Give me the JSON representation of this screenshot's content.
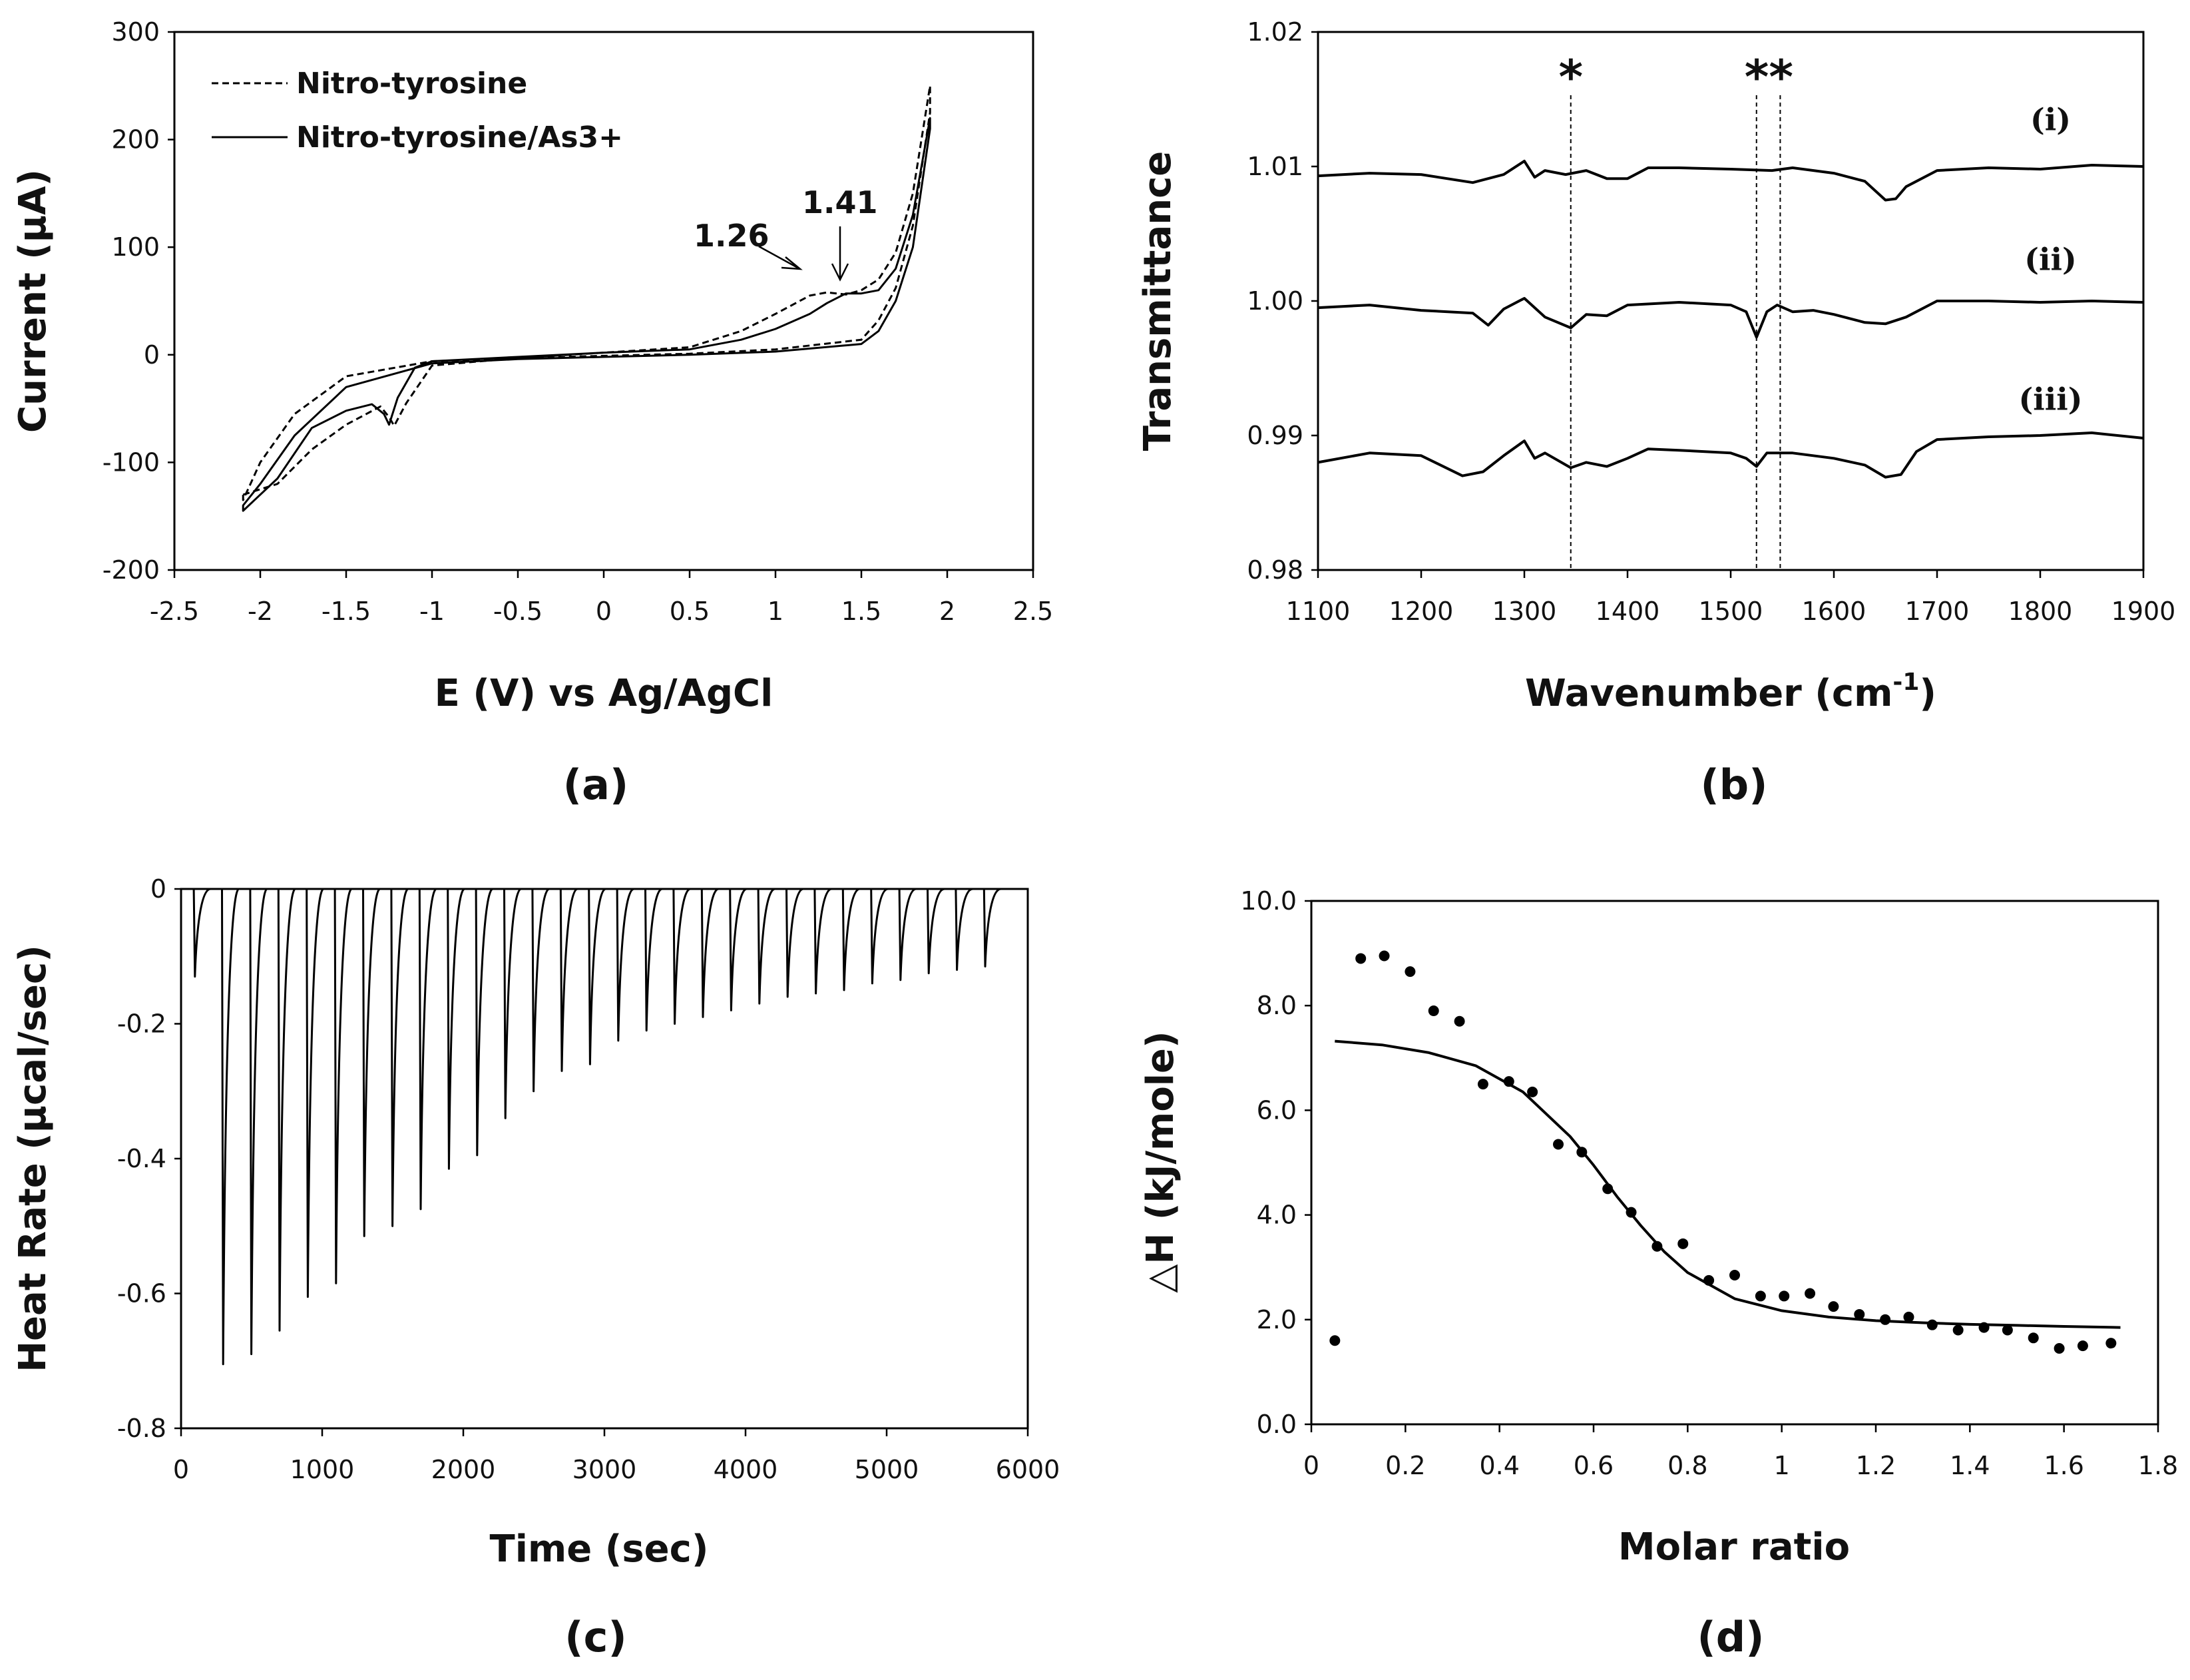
{
  "chart_data": [
    {
      "id": "a",
      "type": "line",
      "panel_label": "(a)",
      "xlabel": "E (V) vs Ag/AgCl",
      "ylabel": "Current (μA)",
      "xlim": [
        -2.5,
        2.5
      ],
      "ylim": [
        -200,
        300
      ],
      "xticks": [
        -2.5,
        -2,
        -1.5,
        -1,
        -0.5,
        0,
        0.5,
        1,
        1.5,
        2,
        2.5
      ],
      "xtick_labels": [
        "-2.5",
        "-2",
        "-1.5",
        "-1",
        "-0.5",
        "0",
        "0.5",
        "1",
        "1.5",
        "2",
        "2.5"
      ],
      "yticks": [
        -200,
        -100,
        0,
        100,
        200,
        300
      ],
      "ytick_labels": [
        "-200",
        "-100",
        "0",
        "100",
        "200",
        "300"
      ],
      "legend_position": "top-left",
      "series": [
        {
          "name": "Nitro-tyrosine",
          "style": "dashed",
          "x": [
            -2.1,
            -1.9,
            -1.7,
            -1.5,
            -1.3,
            -1.25,
            -1.22,
            -1.15,
            -1.0,
            -0.5,
            0.0,
            0.5,
            0.8,
            1.0,
            1.2,
            1.3,
            1.41,
            1.5,
            1.6,
            1.7,
            1.8,
            1.9,
            1.9,
            1.8,
            1.7,
            1.6,
            1.5,
            1.0,
            0.5,
            0.0,
            -0.5,
            -1.0,
            -1.5,
            -1.8,
            -2.0,
            -2.1
          ],
          "y": [
            -130,
            -120,
            -88,
            -65,
            -48,
            -58,
            -66,
            -45,
            -10,
            -3,
            2,
            7,
            22,
            38,
            55,
            58,
            56,
            60,
            70,
            95,
            150,
            250,
            225,
            120,
            62,
            32,
            14,
            5,
            1,
            -1,
            -3,
            -6,
            -20,
            -55,
            -100,
            -135
          ]
        },
        {
          "name": "Nitro-tyrosine/As3+",
          "style": "solid",
          "x": [
            -2.1,
            -1.9,
            -1.7,
            -1.5,
            -1.35,
            -1.28,
            -1.25,
            -1.2,
            -1.1,
            -1.0,
            -0.5,
            0.0,
            0.5,
            0.8,
            1.0,
            1.2,
            1.3,
            1.41,
            1.5,
            1.6,
            1.7,
            1.8,
            1.9,
            1.9,
            1.8,
            1.7,
            1.6,
            1.5,
            1.0,
            0.5,
            0.0,
            -0.5,
            -1.0,
            -1.5,
            -1.8,
            -2.0,
            -2.1
          ],
          "y": [
            -145,
            -115,
            -68,
            -52,
            -46,
            -55,
            -65,
            -40,
            -12,
            -6,
            -2,
            2,
            5,
            14,
            24,
            38,
            48,
            57,
            57,
            60,
            80,
            130,
            220,
            210,
            100,
            50,
            22,
            10,
            3,
            0,
            -2,
            -4,
            -8,
            -30,
            -75,
            -120,
            -140
          ]
        }
      ],
      "annotations": [
        {
          "text": "1.26",
          "x": 1.18,
          "y": 53
        },
        {
          "text": "1.41",
          "x": 1.41,
          "y": 56
        }
      ]
    },
    {
      "id": "b",
      "type": "line",
      "panel_label": "(b)",
      "xlabel": "Wavenumber (cm",
      "xlabel_sup": "-1",
      "xlabel_end": ")",
      "ylabel": "Transmittance",
      "xlim": [
        1100,
        1900
      ],
      "ylim": [
        0.98,
        1.02
      ],
      "xticks": [
        1100,
        1200,
        1300,
        1400,
        1500,
        1600,
        1700,
        1800,
        1900
      ],
      "xtick_labels": [
        "1100",
        "1200",
        "1300",
        "1400",
        "1500",
        "1600",
        "1700",
        "1800",
        "1900"
      ],
      "yticks": [
        0.98,
        0.99,
        1.0,
        1.01,
        1.02
      ],
      "ytick_labels": [
        "0.98",
        "0.99",
        "1.00",
        "1.01",
        "1.02"
      ],
      "series": [
        {
          "name": "(i)",
          "x": [
            1100,
            1150,
            1200,
            1250,
            1280,
            1300,
            1310,
            1320,
            1340,
            1360,
            1380,
            1400,
            1420,
            1450,
            1500,
            1540,
            1560,
            1600,
            1630,
            1650,
            1660,
            1670,
            1700,
            1750,
            1800,
            1850,
            1900
          ],
          "y": [
            1.0093,
            1.0095,
            1.0094,
            1.0088,
            1.0094,
            1.0104,
            1.0092,
            1.0097,
            1.0094,
            1.0097,
            1.0091,
            1.0091,
            1.0099,
            1.0099,
            1.0098,
            1.0097,
            1.0099,
            1.0095,
            1.0089,
            1.0075,
            1.0076,
            1.0085,
            1.0097,
            1.0099,
            1.0098,
            1.0101,
            1.01
          ]
        },
        {
          "name": "(ii)",
          "x": [
            1100,
            1150,
            1200,
            1250,
            1265,
            1280,
            1300,
            1320,
            1345,
            1360,
            1380,
            1400,
            1450,
            1500,
            1515,
            1525,
            1535,
            1545,
            1560,
            1580,
            1600,
            1630,
            1650,
            1670,
            1700,
            1750,
            1800,
            1850,
            1900
          ],
          "y": [
            0.9995,
            0.9997,
            0.9993,
            0.9991,
            0.9982,
            0.9994,
            1.0002,
            0.9988,
            0.998,
            0.999,
            0.9989,
            0.9997,
            0.9999,
            0.9997,
            0.9992,
            0.9973,
            0.9992,
            0.9997,
            0.9992,
            0.9993,
            0.999,
            0.9984,
            0.9983,
            0.9988,
            1.0,
            1.0,
            0.9999,
            1.0,
            0.9999
          ]
        },
        {
          "name": "(iii)",
          "x": [
            1100,
            1150,
            1200,
            1240,
            1260,
            1280,
            1300,
            1310,
            1320,
            1345,
            1360,
            1380,
            1400,
            1420,
            1450,
            1500,
            1515,
            1525,
            1535,
            1560,
            1600,
            1630,
            1650,
            1665,
            1680,
            1700,
            1750,
            1800,
            1850,
            1900
          ],
          "y": [
            0.988,
            0.9887,
            0.9885,
            0.987,
            0.9873,
            0.9885,
            0.9896,
            0.9883,
            0.9887,
            0.9876,
            0.988,
            0.9877,
            0.9883,
            0.989,
            0.9889,
            0.9887,
            0.9883,
            0.9877,
            0.9887,
            0.9887,
            0.9883,
            0.9878,
            0.9869,
            0.9871,
            0.9888,
            0.9897,
            0.9899,
            0.99,
            0.9902,
            0.9898
          ]
        }
      ],
      "series_labels": [
        {
          "text": "(i)",
          "x": 1810,
          "y": 1.0135
        },
        {
          "text": "(ii)",
          "x": 1810,
          "y": 1.0031
        },
        {
          "text": "(iii)",
          "x": 1810,
          "y": 0.9927
        }
      ],
      "reference_lines": [
        1345,
        1525,
        1548
      ],
      "markers": [
        {
          "text": "*",
          "x": 1345
        },
        {
          "text": "**",
          "x": 1537
        }
      ]
    },
    {
      "id": "c",
      "type": "line",
      "panel_label": "(c)",
      "xlabel": "Time (sec)",
      "ylabel": "Heat Rate (μcal/sec)",
      "xlim": [
        0,
        6000
      ],
      "ylim": [
        -0.8,
        0
      ],
      "xticks": [
        0,
        1000,
        2000,
        3000,
        4000,
        5000,
        6000
      ],
      "xtick_labels": [
        "0",
        "1000",
        "2000",
        "3000",
        "4000",
        "5000",
        "6000"
      ],
      "yticks": [
        -0.8,
        -0.6,
        -0.4,
        -0.2,
        0
      ],
      "ytick_labels": [
        "-0.8",
        "-0.6",
        "-0.4",
        "-0.2",
        "0"
      ],
      "baseline": 0,
      "injection_times": [
        90,
        290,
        490,
        690,
        890,
        1090,
        1290,
        1490,
        1690,
        1890,
        2090,
        2290,
        2490,
        2690,
        2890,
        3090,
        3290,
        3490,
        3690,
        3890,
        4090,
        4290,
        4490,
        4690,
        4890,
        5090,
        5290,
        5490,
        5690
      ],
      "peak_values": [
        -0.13,
        -0.705,
        -0.69,
        -0.655,
        -0.605,
        -0.585,
        -0.515,
        -0.5,
        -0.475,
        -0.415,
        -0.395,
        -0.34,
        -0.3,
        -0.27,
        -0.26,
        -0.225,
        -0.21,
        -0.2,
        -0.19,
        -0.18,
        -0.17,
        -0.16,
        -0.155,
        -0.15,
        -0.14,
        -0.135,
        -0.125,
        -0.12,
        -0.115
      ]
    },
    {
      "id": "d",
      "type": "scatter",
      "panel_label": "(d)",
      "xlabel": "Molar ratio",
      "ylabel": "△H (kJ/mole)",
      "xlim": [
        0,
        1.8
      ],
      "ylim": [
        0,
        10
      ],
      "xticks": [
        0,
        0.2,
        0.4,
        0.6,
        0.8,
        1.0,
        1.2,
        1.4,
        1.6,
        1.8
      ],
      "xtick_labels": [
        "0",
        "0.2",
        "0.4",
        "0.6",
        "0.8",
        "1",
        "1.2",
        "1.4",
        "1.6",
        "1.8"
      ],
      "yticks": [
        0,
        2,
        4,
        6,
        8,
        10
      ],
      "ytick_labels": [
        "0.0",
        "2.0",
        "4.0",
        "6.0",
        "8.0",
        "10.0"
      ],
      "points": {
        "x": [
          0.05,
          0.105,
          0.155,
          0.21,
          0.26,
          0.315,
          0.365,
          0.42,
          0.47,
          0.525,
          0.575,
          0.63,
          0.68,
          0.735,
          0.79,
          0.845,
          0.9,
          0.955,
          1.005,
          1.06,
          1.11,
          1.165,
          1.22,
          1.27,
          1.32,
          1.375,
          1.43,
          1.48,
          1.535,
          1.59,
          1.64,
          1.7
        ],
        "y": [
          1.6,
          8.9,
          8.95,
          8.65,
          7.9,
          7.7,
          6.5,
          6.55,
          6.35,
          5.35,
          5.2,
          4.5,
          4.05,
          3.4,
          3.45,
          2.75,
          2.85,
          2.45,
          2.45,
          2.5,
          2.25,
          2.1,
          2.0,
          2.05,
          1.9,
          1.8,
          1.85,
          1.8,
          1.65,
          1.45,
          1.5,
          1.55
        ]
      },
      "fit": {
        "x": [
          0.05,
          0.15,
          0.25,
          0.35,
          0.45,
          0.55,
          0.6,
          0.65,
          0.7,
          0.75,
          0.8,
          0.9,
          1.0,
          1.1,
          1.2,
          1.3,
          1.4,
          1.5,
          1.6,
          1.72
        ],
        "y": [
          7.32,
          7.25,
          7.1,
          6.85,
          6.35,
          5.5,
          4.95,
          4.35,
          3.8,
          3.3,
          2.9,
          2.4,
          2.17,
          2.05,
          1.98,
          1.94,
          1.91,
          1.89,
          1.87,
          1.85
        ]
      }
    }
  ]
}
